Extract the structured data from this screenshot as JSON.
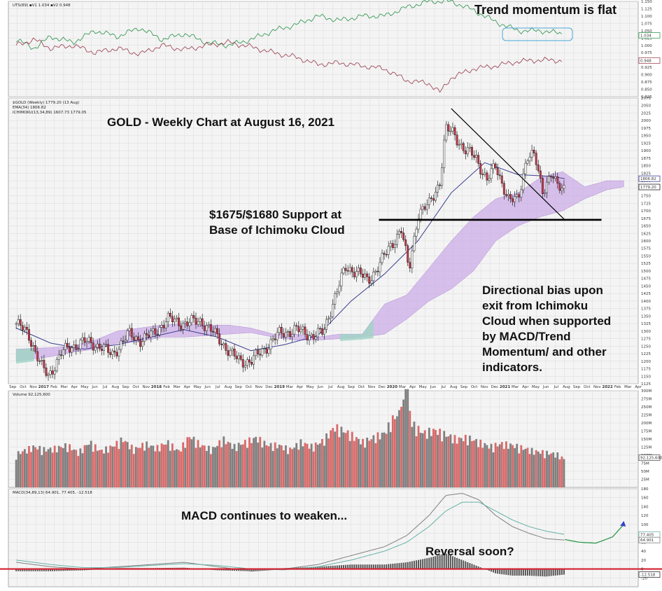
{
  "colors": {
    "up_candle": "#ffffff",
    "down_candle": "#d0344a",
    "ema_line": "#3b3f8f",
    "cloud_bull": "#c9a8e6",
    "cloud_bear": "#9fd4c4",
    "support_line": "#000000",
    "trend_line": "#000000",
    "macd_line": "#808080",
    "macd_signal": "#66b2a6",
    "macd_zero_line": "#d41f2e",
    "vol_up": "#7f7f7f",
    "vol_down": "#d86a6a",
    "tm_green": "#3b9a5a",
    "tm_red": "#a04a5a",
    "reversal_text": "#3a3aa8",
    "tm_box": "#4aa8d8",
    "macd_proj": "#2e9a4c",
    "macd_proj_end": "#3346c8"
  },
  "annotations": {
    "trend_momentum": "Trend momentum is flat",
    "chart_title": "GOLD - Weekly Chart at August 16, 2021",
    "support_1": "$1675/$1680 Support at",
    "support_2": "Base of Ichimoku Cloud",
    "bias_1": "Directional bias upon",
    "bias_2": "exit from Ichimoku",
    "bias_3": "Cloud when supported",
    "bias_4": "by MACD/Trend",
    "bias_5": "Momentum/ and other",
    "bias_6": "indicators.",
    "macd_note": "MACD continues to weaken...",
    "reversal": "Reversal soon?"
  },
  "legends": {
    "tm": "UTS(89) ▪V1 1.034 ▪V2 0.948",
    "price_1": "$GOLD (Weekly) 1779.20 (13 Aug)",
    "price_2": "EMA(34) 1806.82",
    "price_3": "ICHIMOKU(13,34,89) 1607.73 1779.05",
    "volume": "Volume 92,125,600",
    "macd": "MACD(34,89,13) 64.901, 77.405, -12.518"
  },
  "axis_labels": {
    "tm_last_green": "1.034",
    "tm_last_red": "0.948",
    "price_last_1": "1806.82",
    "price_last_2": "1779.20",
    "vol_last": "92,125,600",
    "macd_last_1": "77.405",
    "macd_last_2": "64.901",
    "macd_last_3": "-12.518"
  },
  "chart_data": [
    {
      "panel": "trend_momentum",
      "type": "line",
      "ylim": [
        0.825,
        1.15
      ],
      "y_ticks": [
        0.825,
        0.85,
        0.875,
        0.9,
        0.925,
        0.95,
        0.975,
        1.0,
        1.025,
        1.05,
        1.075,
        1.1,
        1.125,
        1.15
      ],
      "series": [
        {
          "name": "V1",
          "color": "#3b9a5a",
          "x": [
            2016.69,
            2016.85,
            2017.0,
            2017.2,
            2017.4,
            2017.6,
            2017.8,
            2018.0,
            2018.2,
            2018.4,
            2018.6,
            2018.8,
            2019.0,
            2019.2,
            2019.4,
            2019.6,
            2019.8,
            2020.0,
            2020.2,
            2020.4,
            2020.6,
            2020.8,
            2021.0,
            2021.2,
            2021.4,
            2021.6
          ],
          "values": [
            1.02,
            0.99,
            1.03,
            1.01,
            1.05,
            1.03,
            1.06,
            1.02,
            1.04,
            1.01,
            1.0,
            1.02,
            1.05,
            1.07,
            1.1,
            1.085,
            1.1,
            1.1,
            1.13,
            1.15,
            1.15,
            1.12,
            1.08,
            1.05,
            1.05,
            1.04
          ]
        },
        {
          "name": "V2",
          "color": "#a04a5a",
          "x": [
            2016.69,
            2016.85,
            2017.0,
            2017.2,
            2017.4,
            2017.6,
            2017.8,
            2018.0,
            2018.2,
            2018.4,
            2018.6,
            2018.8,
            2019.0,
            2019.2,
            2019.4,
            2019.6,
            2019.8,
            2020.0,
            2020.2,
            2020.4,
            2020.5,
            2020.6,
            2020.8,
            2021.0,
            2021.2,
            2021.4,
            2021.6
          ],
          "values": [
            1.0,
            1.02,
            0.99,
            1.0,
            0.975,
            0.99,
            0.97,
            1.0,
            0.985,
            1.0,
            1.01,
            0.995,
            0.975,
            0.96,
            0.935,
            0.94,
            0.93,
            0.92,
            0.88,
            0.87,
            0.84,
            0.89,
            0.92,
            0.93,
            0.945,
            0.95,
            0.948
          ]
        }
      ]
    },
    {
      "panel": "price",
      "type": "candlestick",
      "ylim": [
        1125,
        2075
      ],
      "y_ticks": [
        1125,
        1150,
        1175,
        1200,
        1225,
        1250,
        1275,
        1300,
        1325,
        1350,
        1375,
        1400,
        1425,
        1450,
        1475,
        1500,
        1525,
        1550,
        1575,
        1600,
        1625,
        1650,
        1675,
        1700,
        1725,
        1750,
        1775,
        1800,
        1825,
        1850,
        1875,
        1900,
        1925,
        1950,
        1975,
        2000,
        2025,
        2050,
        2075
      ],
      "x_labels": [
        "Sep",
        "Oct",
        "Nov",
        "2017",
        "Feb",
        "Mar",
        "Apr",
        "May",
        "Jun",
        "Jul",
        "Aug",
        "Sep",
        "Oct",
        "Nov",
        "2018",
        "Feb",
        "Mar",
        "Apr",
        "May",
        "Jun",
        "Jul",
        "Aug",
        "Sep",
        "Oct",
        "Nov",
        "Dec",
        "2019",
        "Mar",
        "Apr",
        "May",
        "Jun",
        "Jul",
        "Aug",
        "Sep",
        "Oct",
        "Nov",
        "Dec",
        "2020",
        "Mar",
        "Apr",
        "May",
        "Jun",
        "Jul",
        "Aug",
        "Sep",
        "Oct",
        "Nov",
        "Dec",
        "2021",
        "Mar",
        "Apr",
        "May",
        "Jun",
        "Jul",
        "Aug",
        "Sep",
        "Oct",
        "Nov",
        "2022",
        "Feb",
        "Mar",
        "Apr"
      ],
      "close_path": {
        "x": [
          2016.69,
          2016.8,
          2016.92,
          2016.98,
          2017.1,
          2017.2,
          2017.3,
          2017.45,
          2017.55,
          2017.7,
          2017.8,
          2017.92,
          2018.05,
          2018.2,
          2018.35,
          2018.5,
          2018.62,
          2018.7,
          2018.8,
          2018.92,
          2019.05,
          2019.2,
          2019.35,
          2019.45,
          2019.55,
          2019.65,
          2019.75,
          2019.85,
          2019.95,
          2020.05,
          2020.15,
          2020.22,
          2020.3,
          2020.4,
          2020.5,
          2020.55,
          2020.62,
          2020.72,
          2020.82,
          2020.92,
          2021.0,
          2021.12,
          2021.2,
          2021.28,
          2021.35,
          2021.42,
          2021.5,
          2021.55,
          2021.62
        ],
        "values": [
          1325,
          1290,
          1180,
          1150,
          1230,
          1250,
          1265,
          1250,
          1220,
          1290,
          1270,
          1290,
          1340,
          1325,
          1335,
          1280,
          1225,
          1200,
          1200,
          1240,
          1290,
          1305,
          1285,
          1295,
          1410,
          1510,
          1500,
          1465,
          1520,
          1580,
          1640,
          1500,
          1690,
          1720,
          1800,
          1970,
          1960,
          1900,
          1880,
          1800,
          1850,
          1730,
          1740,
          1880,
          1880,
          1770,
          1820,
          1780,
          1779.2
        ]
      },
      "ema34": {
        "x": [
          2016.69,
          2017.0,
          2017.3,
          2017.6,
          2017.9,
          2018.2,
          2018.5,
          2018.8,
          2019.1,
          2019.4,
          2019.7,
          2020.0,
          2020.3,
          2020.6,
          2020.9,
          2021.2,
          2021.5,
          2021.62
        ],
        "values": [
          1310,
          1260,
          1240,
          1255,
          1280,
          1305,
          1280,
          1235,
          1255,
          1285,
          1400,
          1490,
          1600,
          1760,
          1860,
          1820,
          1815,
          1806.82
        ]
      },
      "cloud": {
        "x": [
          2016.69,
          2017.0,
          2017.2,
          2017.4,
          2017.6,
          2017.8,
          2018.0,
          2018.2,
          2018.4,
          2018.6,
          2018.8,
          2019.0,
          2019.2,
          2019.4,
          2019.6,
          2019.8,
          2020.0,
          2020.2,
          2020.4,
          2020.6,
          2020.8,
          2021.0,
          2021.2,
          2021.4,
          2021.6,
          2021.8,
          2022.0,
          2022.15
        ],
        "upper": [
          1240,
          1245,
          1250,
          1270,
          1300,
          1310,
          1320,
          1325,
          1320,
          1320,
          1310,
          1290,
          1290,
          1280,
          1290,
          1290,
          1390,
          1420,
          1510,
          1600,
          1680,
          1740,
          1760,
          1810,
          1830,
          1780,
          1800,
          1800
        ],
        "lower": [
          1200,
          1215,
          1230,
          1240,
          1260,
          1265,
          1280,
          1280,
          1285,
          1290,
          1295,
          1280,
          1270,
          1270,
          1275,
          1280,
          1290,
          1340,
          1400,
          1440,
          1500,
          1600,
          1650,
          1680,
          1700,
          1740,
          1770,
          1780
        ]
      },
      "support_level": [
        1670,
        1670
      ],
      "support_x": [
        2019.95,
        2021.95
      ],
      "trend_line": {
        "x": [
          2020.6,
          2021.62
        ],
        "values": [
          2040,
          1670
        ]
      },
      "last_values": [
        1806.82,
        1779.2
      ]
    },
    {
      "panel": "volume",
      "type": "bar",
      "ylim": [
        0,
        300000000
      ],
      "y_ticks": [
        25000000,
        50000000,
        75000000,
        100000000,
        125000000,
        150000000,
        175000000,
        200000000,
        225000000,
        250000000,
        275000000,
        300000000
      ],
      "y_tick_labels": [
        "25M",
        "50M",
        "75M",
        "100M",
        "125M",
        "150M",
        "175M",
        "200M",
        "225M",
        "250M",
        "275M",
        "300M"
      ],
      "x": [
        2016.69,
        2016.75,
        2016.85,
        2016.95,
        2017.05,
        2017.15,
        2017.25,
        2017.35,
        2017.45,
        2017.55,
        2017.65,
        2017.75,
        2017.85,
        2017.95,
        2018.05,
        2018.15,
        2018.25,
        2018.35,
        2018.45,
        2018.55,
        2018.65,
        2018.75,
        2018.85,
        2018.95,
        2019.05,
        2019.15,
        2019.25,
        2019.35,
        2019.45,
        2019.55,
        2019.62,
        2019.7,
        2019.8,
        2019.9,
        2020.0,
        2020.08,
        2020.15,
        2020.2,
        2020.25,
        2020.35,
        2020.45,
        2020.55,
        2020.65,
        2020.75,
        2020.85,
        2020.95,
        2021.05,
        2021.15,
        2021.25,
        2021.35,
        2021.45,
        2021.55,
        2021.62
      ],
      "values": [
        110000000,
        120000000,
        135000000,
        125000000,
        130000000,
        140000000,
        115000000,
        150000000,
        120000000,
        135000000,
        160000000,
        125000000,
        145000000,
        130000000,
        150000000,
        120000000,
        170000000,
        140000000,
        125000000,
        160000000,
        135000000,
        150000000,
        165000000,
        140000000,
        140000000,
        125000000,
        150000000,
        135000000,
        155000000,
        200000000,
        190000000,
        175000000,
        150000000,
        165000000,
        180000000,
        230000000,
        250000000,
        305000000,
        210000000,
        180000000,
        190000000,
        175000000,
        160000000,
        165000000,
        150000000,
        135000000,
        145000000,
        140000000,
        130000000,
        120000000,
        115000000,
        110000000,
        92125600
      ],
      "last_value": 92125600
    },
    {
      "panel": "macd",
      "type": "line",
      "ylim": [
        -40,
        180
      ],
      "y_ticks": [
        -20,
        0,
        20,
        40,
        60,
        80,
        100,
        120,
        140,
        160,
        180
      ],
      "series": [
        {
          "name": "MACD",
          "color": "#808080",
          "x": [
            2016.69,
            2017.0,
            2017.3,
            2017.6,
            2017.9,
            2018.2,
            2018.5,
            2018.8,
            2019.1,
            2019.4,
            2019.7,
            2020.0,
            2020.2,
            2020.4,
            2020.55,
            2020.7,
            2020.85,
            2021.0,
            2021.15,
            2021.3,
            2021.45,
            2021.62
          ],
          "values": [
            15,
            5,
            0,
            5,
            10,
            15,
            5,
            -5,
            0,
            10,
            30,
            50,
            75,
            120,
            165,
            170,
            155,
            120,
            95,
            80,
            68,
            64.901
          ]
        },
        {
          "name": "Signal",
          "color": "#66b2a6",
          "x": [
            2016.69,
            2017.0,
            2017.3,
            2017.6,
            2017.9,
            2018.2,
            2018.5,
            2018.8,
            2019.1,
            2019.4,
            2019.7,
            2020.0,
            2020.2,
            2020.4,
            2020.55,
            2020.7,
            2020.85,
            2021.0,
            2021.15,
            2021.3,
            2021.45,
            2021.62
          ],
          "values": [
            20,
            10,
            3,
            3,
            8,
            12,
            8,
            0,
            -2,
            5,
            20,
            40,
            60,
            95,
            130,
            150,
            150,
            130,
            110,
            95,
            85,
            77.405
          ]
        }
      ],
      "projection": {
        "x": [
          2021.62,
          2021.75,
          2021.9,
          2022.05,
          2022.15
        ],
        "values": [
          66,
          60,
          58,
          72,
          100
        ]
      },
      "zero_line": 0,
      "last_values": [
        77.405,
        64.901,
        -12.518
      ]
    }
  ]
}
